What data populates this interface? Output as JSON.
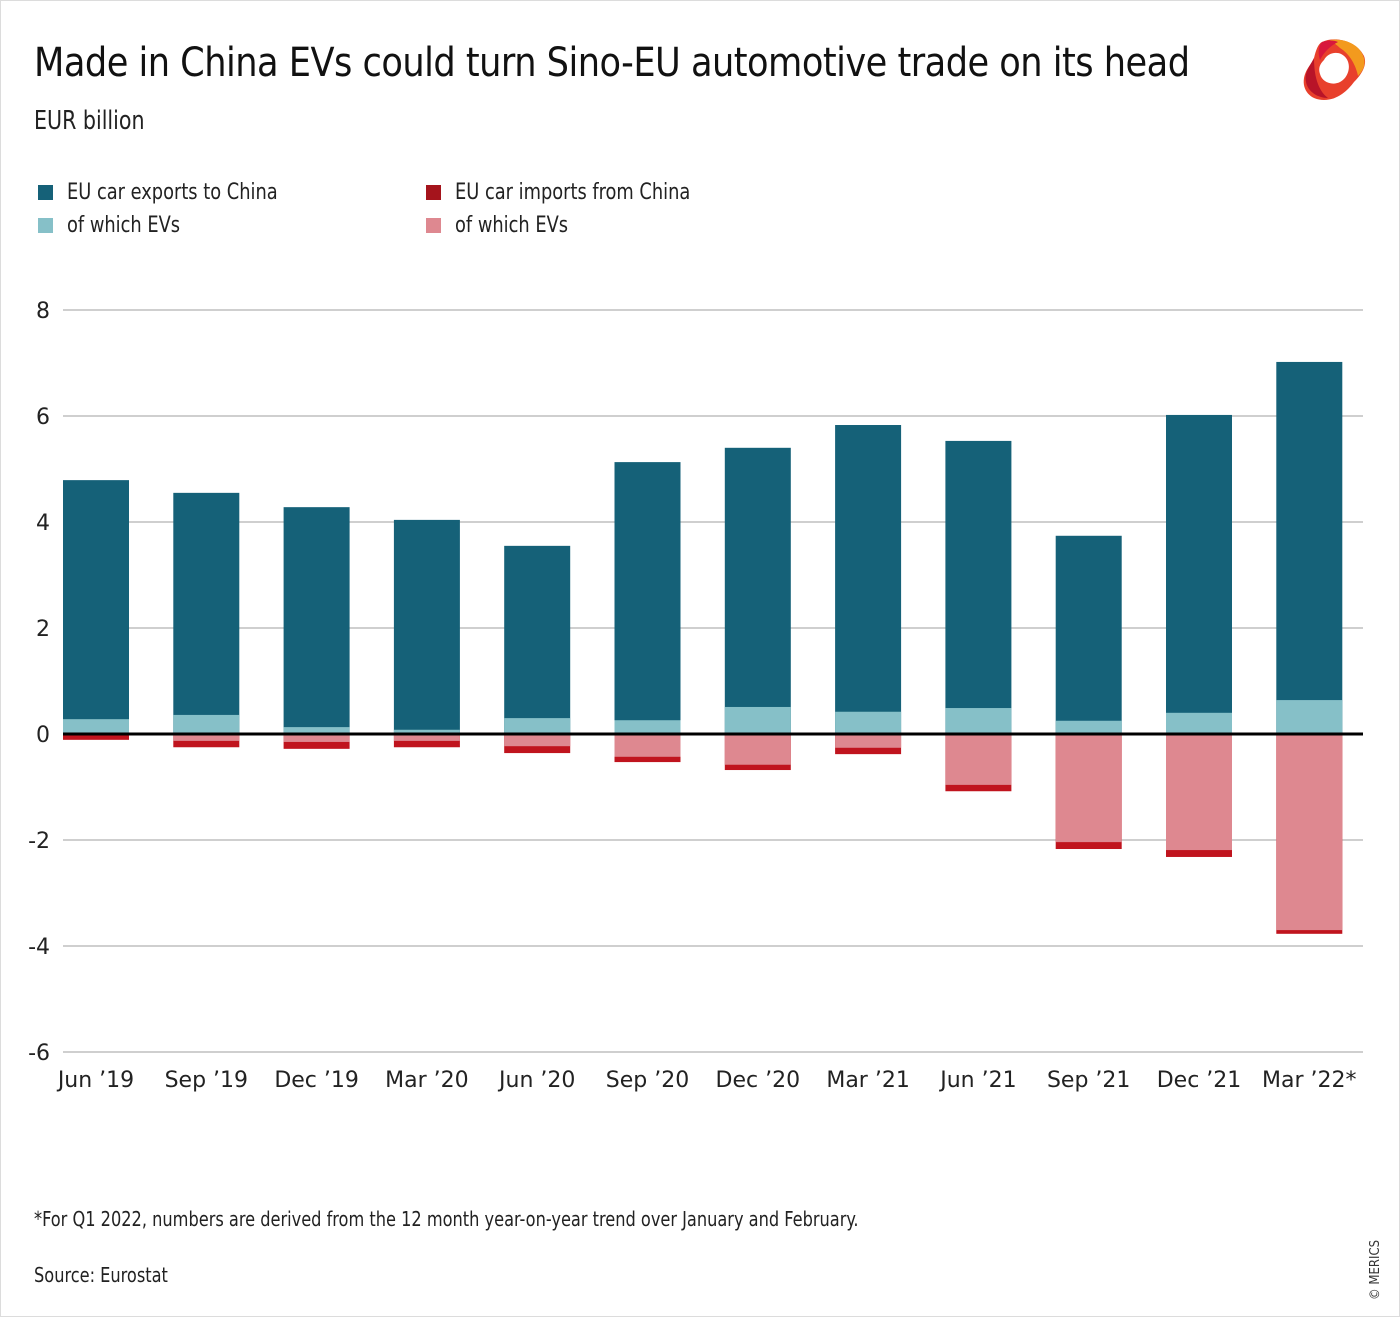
{
  "header": {
    "title": "Made in China EVs could turn Sino-EU automotive trade on its head",
    "subtitle": "EUR billion",
    "logo": "merics-logo-icon"
  },
  "legend": [
    {
      "label": "EU car exports to China",
      "color": "#156178"
    },
    {
      "label": "of which EVs",
      "color": "#86c0c8"
    },
    {
      "label": "EU car imports from China",
      "color": "#a5141c"
    },
    {
      "label": "of which EVs",
      "color": "#de8890"
    }
  ],
  "footer": {
    "footnote": "*For Q1 2022, numbers are derived from the 12 month year-on-year trend over January and February.",
    "source": "Source: Eurostat",
    "copyright": "© MERICS"
  },
  "chart_data": {
    "type": "bar",
    "stacked": true,
    "title": "Made in China EVs could turn Sino-EU automotive trade on its head",
    "subtitle": "EUR billion",
    "xlabel": "",
    "ylabel": "EUR billion",
    "ylim": [
      -6,
      8
    ],
    "yticks": [
      8,
      6,
      4,
      2,
      0,
      -2,
      -4,
      -6
    ],
    "grid": true,
    "legend_position": "top-left",
    "categories": [
      "Jun ’19",
      "Sep ’19",
      "Dec ’19",
      "Mar ’20",
      "Jun ’20",
      "Sep ’20",
      "Dec ’20",
      "Mar ’21",
      "Jun ’21",
      "Sep ’21",
      "Dec ’21",
      "Mar ’22*"
    ],
    "series": [
      {
        "name": "EU car exports to China",
        "color": "#156178",
        "values": [
          4.79,
          4.55,
          4.28,
          4.04,
          3.55,
          5.13,
          5.4,
          5.83,
          5.53,
          3.74,
          6.02,
          7.02
        ]
      },
      {
        "name": "EU car exports to China – of which EVs",
        "color": "#86c0c8",
        "values": [
          0.28,
          0.36,
          0.13,
          0.08,
          0.3,
          0.26,
          0.51,
          0.42,
          0.49,
          0.25,
          0.4,
          0.64
        ]
      },
      {
        "name": "EU car imports from China",
        "color": "#c0141e",
        "values": [
          -0.11,
          -0.25,
          -0.28,
          -0.25,
          -0.36,
          -0.53,
          -0.68,
          -0.38,
          -1.08,
          -2.17,
          -2.32,
          -3.77
        ]
      },
      {
        "name": "EU car imports from China – of which EVs",
        "color": "#de8890",
        "values": [
          -0.02,
          -0.13,
          -0.15,
          -0.13,
          -0.23,
          -0.43,
          -0.58,
          -0.26,
          -0.96,
          -2.04,
          -2.19,
          -3.7
        ]
      }
    ],
    "annotations": [
      "*For Q1 2022, numbers are derived from the 12 month year-on-year trend over January and February."
    ]
  }
}
